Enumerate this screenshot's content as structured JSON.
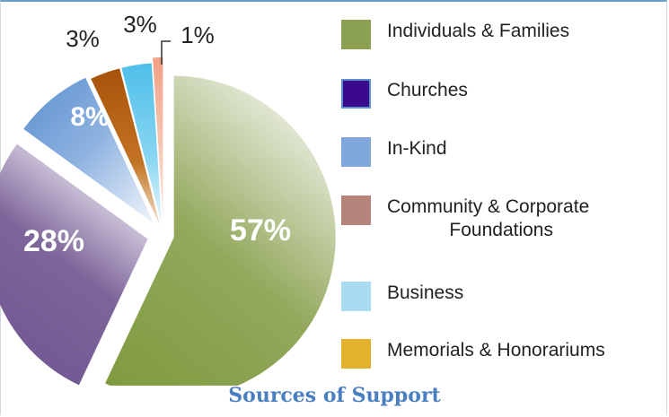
{
  "chart_data": {
    "type": "pie",
    "title": "Sources of Support",
    "slices": [
      {
        "label": "57%",
        "value": 57
      },
      {
        "label": "28%",
        "value": 28
      },
      {
        "label": "8%",
        "value": 8
      },
      {
        "label": "3%",
        "value": 3
      },
      {
        "label": "3%",
        "value": 3
      },
      {
        "label": "1%",
        "value": 1
      }
    ],
    "legend": [
      {
        "name": "Individuals & Families",
        "color": "#8ba050"
      },
      {
        "name": "Churches",
        "color": "#3b0a8c"
      },
      {
        "name": "In-Kind",
        "color": "#7fa7dc"
      },
      {
        "name": "Community & Corporate\n     Foundations",
        "color": "#b5837a"
      },
      {
        "name": "Business",
        "color": "#a9dcf0"
      },
      {
        "name": "Memorials & Honorariums",
        "color": "#e2b12e"
      }
    ],
    "slice_colors": [
      "#8ba050",
      "#7b5c96",
      "#5b8fd0",
      "#b5600f",
      "#62c8ec",
      "#f2a58a"
    ]
  }
}
